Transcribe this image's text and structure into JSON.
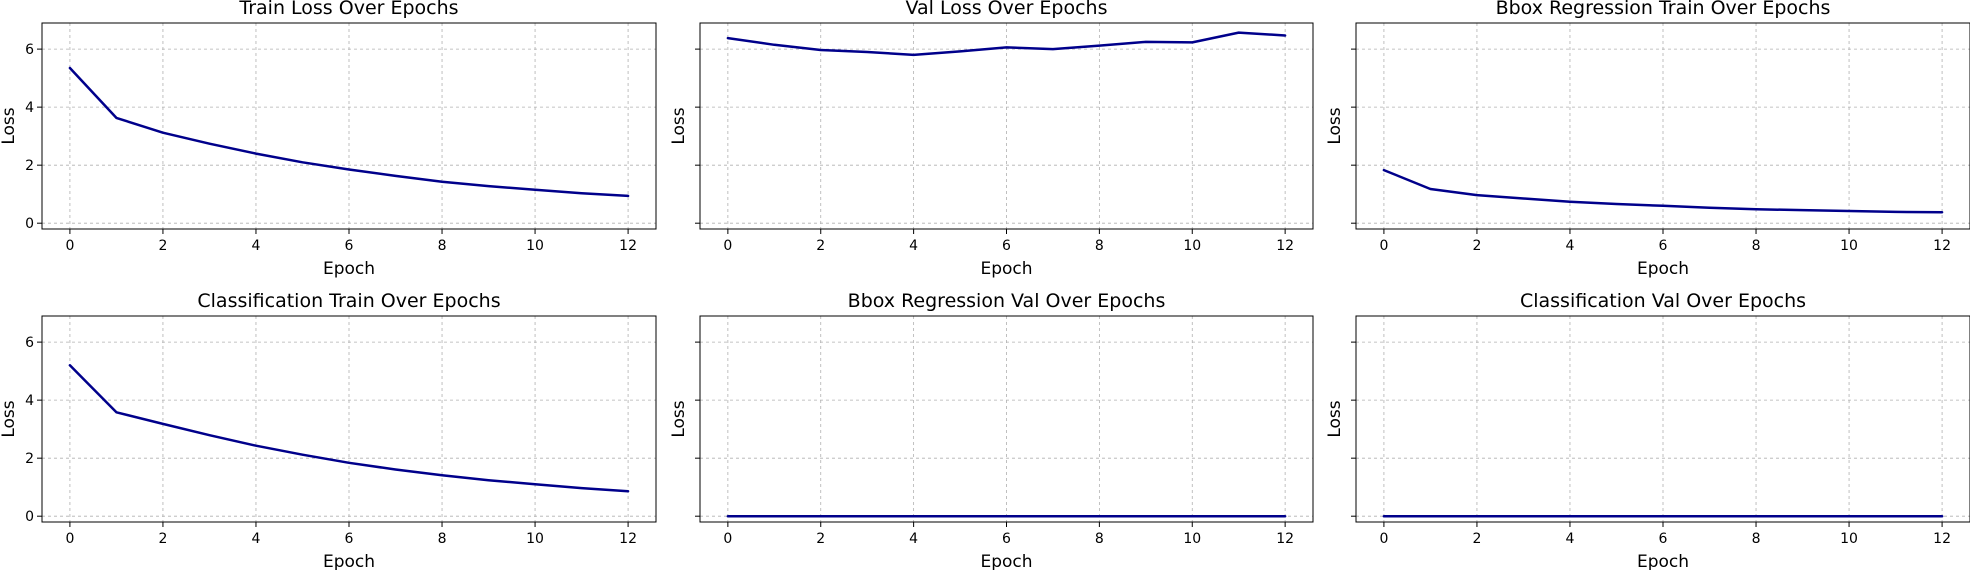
{
  "chart_data": [
    {
      "type": "line",
      "title": "Train Loss Over Epochs",
      "xlabel": "Epoch",
      "ylabel": "Loss",
      "xlim": [
        -0.6,
        12.6
      ],
      "ylim": [
        -0.2,
        6.9
      ],
      "xticks": [
        0,
        2,
        4,
        6,
        8,
        10,
        12
      ],
      "yticks": [
        0,
        2,
        4,
        6
      ],
      "show_ytick_labels": true,
      "grid": true,
      "color": "#00008b",
      "x": [
        0,
        1,
        2,
        3,
        4,
        5,
        6,
        7,
        8,
        9,
        10,
        11,
        12
      ],
      "y": [
        5.35,
        3.63,
        3.12,
        2.74,
        2.4,
        2.1,
        1.85,
        1.63,
        1.43,
        1.28,
        1.15,
        1.03,
        0.94
      ]
    },
    {
      "type": "line",
      "title": "Val Loss Over Epochs",
      "xlabel": "Epoch",
      "ylabel": "Loss",
      "xlim": [
        -0.6,
        12.6
      ],
      "ylim": [
        -0.2,
        6.9
      ],
      "xticks": [
        0,
        2,
        4,
        6,
        8,
        10,
        12
      ],
      "yticks": [
        0,
        2,
        4,
        6
      ],
      "show_ytick_labels": false,
      "grid": true,
      "color": "#00008b",
      "x": [
        0,
        1,
        2,
        3,
        4,
        5,
        6,
        7,
        8,
        9,
        10,
        11,
        12
      ],
      "y": [
        6.38,
        6.15,
        5.97,
        5.9,
        5.8,
        5.92,
        6.06,
        6.0,
        6.12,
        6.25,
        6.23,
        6.57,
        6.47
      ]
    },
    {
      "type": "line",
      "title": "Bbox Regression Train Over Epochs",
      "xlabel": "Epoch",
      "ylabel": "Loss",
      "xlim": [
        -0.6,
        12.6
      ],
      "ylim": [
        -0.2,
        6.9
      ],
      "xticks": [
        0,
        2,
        4,
        6,
        8,
        10,
        12
      ],
      "yticks": [
        0,
        2,
        4,
        6
      ],
      "show_ytick_labels": false,
      "grid": true,
      "color": "#00008b",
      "x": [
        0,
        1,
        2,
        3,
        4,
        5,
        6,
        7,
        8,
        9,
        10,
        11,
        12
      ],
      "y": [
        1.83,
        1.18,
        0.97,
        0.85,
        0.74,
        0.66,
        0.6,
        0.53,
        0.48,
        0.45,
        0.42,
        0.39,
        0.38
      ]
    },
    {
      "type": "line",
      "title": "Classification Train Over Epochs",
      "xlabel": "Epoch",
      "ylabel": "Loss",
      "xlim": [
        -0.6,
        12.6
      ],
      "ylim": [
        -0.2,
        6.9
      ],
      "xticks": [
        0,
        2,
        4,
        6,
        8,
        10,
        12
      ],
      "yticks": [
        0,
        2,
        4,
        6
      ],
      "show_ytick_labels": true,
      "grid": true,
      "color": "#00008b",
      "x": [
        0,
        1,
        2,
        3,
        4,
        5,
        6,
        7,
        8,
        9,
        10,
        11,
        12
      ],
      "y": [
        5.2,
        3.58,
        3.18,
        2.79,
        2.43,
        2.12,
        1.84,
        1.61,
        1.41,
        1.24,
        1.1,
        0.97,
        0.86
      ]
    },
    {
      "type": "line",
      "title": "Bbox Regression Val Over Epochs",
      "xlabel": "Epoch",
      "ylabel": "Loss",
      "xlim": [
        -0.6,
        12.6
      ],
      "ylim": [
        -0.2,
        6.9
      ],
      "xticks": [
        0,
        2,
        4,
        6,
        8,
        10,
        12
      ],
      "yticks": [
        0,
        2,
        4,
        6
      ],
      "show_ytick_labels": false,
      "grid": true,
      "color": "#00008b",
      "x": [
        0,
        1,
        2,
        3,
        4,
        5,
        6,
        7,
        8,
        9,
        10,
        11,
        12
      ],
      "y": [
        0,
        0,
        0,
        0,
        0,
        0,
        0,
        0,
        0,
        0,
        0,
        0,
        0
      ]
    },
    {
      "type": "line",
      "title": "Classification Val Over Epochs",
      "xlabel": "Epoch",
      "ylabel": "Loss",
      "xlim": [
        -0.6,
        12.6
      ],
      "ylim": [
        -0.2,
        6.9
      ],
      "xticks": [
        0,
        2,
        4,
        6,
        8,
        10,
        12
      ],
      "yticks": [
        0,
        2,
        4,
        6
      ],
      "show_ytick_labels": false,
      "grid": true,
      "color": "#00008b",
      "x": [
        0,
        1,
        2,
        3,
        4,
        5,
        6,
        7,
        8,
        9,
        10,
        11,
        12
      ],
      "y": [
        0,
        0,
        0,
        0,
        0,
        0,
        0,
        0,
        0,
        0,
        0,
        0,
        0
      ]
    }
  ]
}
